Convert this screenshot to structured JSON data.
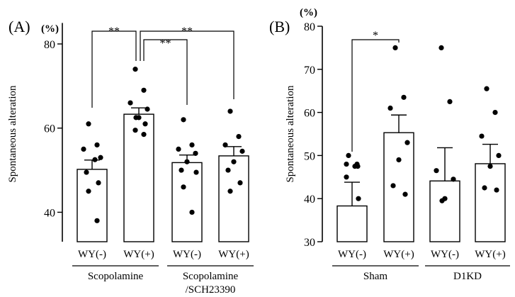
{
  "chart_data": [
    {
      "panel_label": "(A)",
      "type": "bar",
      "y_unit": "(%)",
      "ylabel": "Spontaneous alteration",
      "ylim": [
        33,
        85
      ],
      "yticks": [
        40,
        60,
        80
      ],
      "categories": [
        "WY(-)",
        "WY(+)",
        "WY(-)",
        "WY(+)"
      ],
      "groups": [
        {
          "label": "Scopolamine",
          "span": [
            0,
            1
          ]
        },
        {
          "label": "Scopolamine\n/SCH23390",
          "span": [
            2,
            3
          ]
        }
      ],
      "values": [
        50.2,
        63.3,
        51.8,
        53.4
      ],
      "errors": [
        2.2,
        1.5,
        1.8,
        2.2
      ],
      "points": [
        [
          61,
          56,
          55,
          53,
          52.5,
          49.5,
          47,
          45,
          38
        ],
        [
          74,
          69,
          66,
          64.5,
          62.5,
          62.5,
          61,
          59.5,
          58.5
        ],
        [
          62,
          56,
          55,
          54,
          52,
          50,
          49.5,
          46,
          40
        ],
        [
          64,
          58,
          56,
          54.5,
          52,
          50,
          47,
          45
        ]
      ],
      "significance": [
        {
          "from": 0,
          "to": 1,
          "label": "**"
        },
        {
          "from": 1,
          "to": 2,
          "label": "**"
        },
        {
          "from": 1,
          "to": 3,
          "label": "**"
        }
      ]
    },
    {
      "panel_label": "(B)",
      "type": "bar",
      "y_unit": "(%)",
      "ylabel": "Spontaneous alteration",
      "ylim": [
        30,
        80
      ],
      "yticks": [
        30,
        40,
        50,
        60,
        70,
        80
      ],
      "categories": [
        "WY(-)",
        "WY(+)",
        "WY(-)",
        "WY(+)"
      ],
      "groups": [
        {
          "label": "Sham",
          "span": [
            0,
            1
          ]
        },
        {
          "label": "D1KD",
          "span": [
            2,
            3
          ]
        }
      ],
      "values": [
        38.3,
        55.3,
        44.1,
        48.1
      ],
      "errors": [
        5.5,
        4.1,
        7.7,
        4.5
      ],
      "points": [
        [
          50,
          48,
          48,
          47.5,
          47.5,
          45,
          40
        ],
        [
          75,
          63.5,
          61,
          53,
          49,
          43,
          41
        ],
        [
          75,
          62.5,
          46.5,
          44.5,
          40,
          39.5
        ],
        [
          65.5,
          60,
          54.5,
          50,
          47.5,
          42.5,
          42
        ]
      ],
      "significance": [
        {
          "from": 0,
          "to": 1,
          "label": "*"
        }
      ]
    }
  ]
}
